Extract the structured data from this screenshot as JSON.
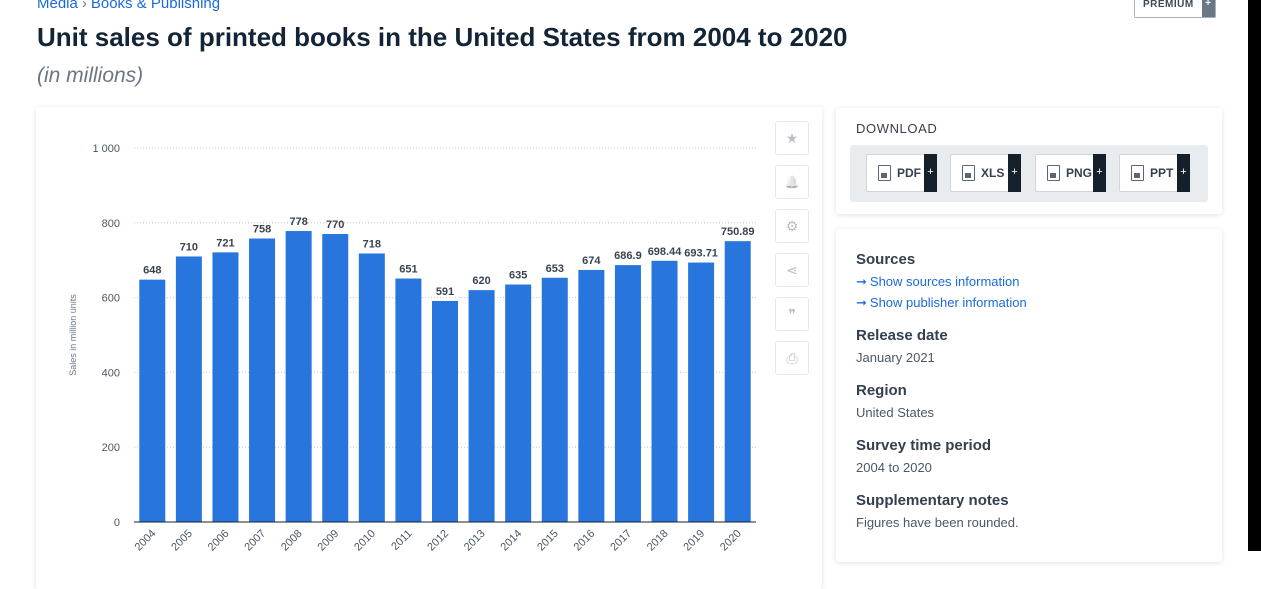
{
  "breadcrumb": {
    "part1": "Media",
    "separator": "›",
    "part2": "Books & Publishing"
  },
  "premium": {
    "label": "PREMIUM",
    "plus": "+"
  },
  "title": "Unit sales of printed books in the United States from 2004 to 2020",
  "subtitle": "(in millions)",
  "toolbar": {
    "icons": [
      "star-icon",
      "bell-icon",
      "gear-icon",
      "share-icon",
      "quote-icon",
      "print-icon"
    ],
    "glyphs": [
      "★",
      "🔔",
      "⚙",
      "⋖",
      "❞",
      "⎙"
    ]
  },
  "download": {
    "title": "DOWNLOAD",
    "buttons": [
      {
        "label": "PDF",
        "plus": "+"
      },
      {
        "label": "XLS",
        "plus": "+"
      },
      {
        "label": "PNG",
        "plus": "+"
      },
      {
        "label": "PPT",
        "plus": "+"
      }
    ]
  },
  "info": {
    "sources_heading": "Sources",
    "show_sources": "Show sources information",
    "show_publisher": "Show publisher information",
    "link_arrow": "➞",
    "release_heading": "Release date",
    "release_value": "January 2021",
    "region_heading": "Region",
    "region_value": "United States",
    "period_heading": "Survey time period",
    "period_value": "2004 to 2020",
    "notes_heading": "Supplementary notes",
    "notes_value": "Figures have been rounded."
  },
  "colors": {
    "bar": "#2876dd",
    "accent": "#1a6ad8"
  },
  "chart_data": {
    "type": "bar",
    "title": "Unit sales of printed books in the United States from 2004 to 2020",
    "subtitle": "(in millions)",
    "xlabel": "",
    "ylabel": "Sales in million units",
    "ylim": [
      0,
      1000
    ],
    "yticks": [
      0,
      200,
      400,
      600,
      800,
      1000
    ],
    "ytick_labels": [
      "0",
      "200",
      "400",
      "600",
      "800",
      "1 000"
    ],
    "grid": true,
    "categories": [
      "2004",
      "2005",
      "2006",
      "2007",
      "2008",
      "2009",
      "2010",
      "2011",
      "2012",
      "2013",
      "2014",
      "2015",
      "2016",
      "2017",
      "2018",
      "2019",
      "2020"
    ],
    "values": [
      648,
      710,
      721,
      758,
      778,
      770,
      718,
      651,
      591,
      620,
      635,
      653,
      674,
      686.9,
      698.44,
      693.71,
      750.89
    ],
    "value_labels": [
      "648",
      "710",
      "721",
      "758",
      "778",
      "770",
      "718",
      "651",
      "591",
      "620",
      "635",
      "653",
      "674",
      "686.9",
      "698.44",
      "693.71",
      "750.89"
    ]
  }
}
